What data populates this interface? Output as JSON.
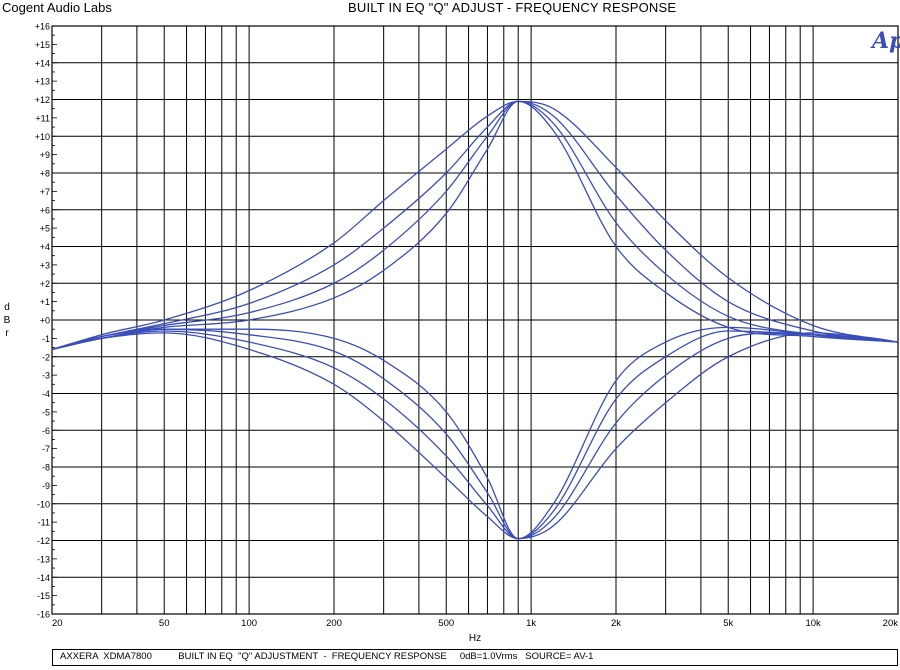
{
  "header": {
    "company": "Cogent Audio Labs",
    "title": "BUILT IN EQ \"Q\" ADJUST  -  FREQUENCY RESPONSE"
  },
  "logo": {
    "text": "Ap",
    "color": "#3a4db8"
  },
  "footer": {
    "text": "AXXERA  XDMA7800          BUILT IN EQ  \"Q\" ADJUSTMENT  -  FREQUENCY RESPONSE     0dB=1.0Vrms   SOURCE= AV-1"
  },
  "chart_data": {
    "type": "line",
    "title": "BUILT IN EQ \"Q\" ADJUST  -  FREQUENCY RESPONSE",
    "xlabel": "Hz",
    "ylabel": "dBr",
    "x_scale": "log",
    "xlim": [
      20,
      20000
    ],
    "ylim": [
      -16,
      16
    ],
    "grid": true,
    "line_color": "#3a4db8",
    "x_tick_labels": [
      "20",
      "50",
      "100",
      "200",
      "500",
      "1k",
      "2k",
      "5k",
      "10k",
      "20k"
    ],
    "y_tick_labels": [
      "+16",
      "+15",
      "+14",
      "+13",
      "+12",
      "+11",
      "+10",
      "+9",
      "+8",
      "+7",
      "+6",
      "+5",
      "+4",
      "+3",
      "+2",
      "+1",
      "+0",
      "-1",
      "-2",
      "-3",
      "-4",
      "-5",
      "-6",
      "-7",
      "-8",
      "-9",
      "-10",
      "-11",
      "-12",
      "-13",
      "-14",
      "-15",
      "-16"
    ],
    "x": [
      20,
      30,
      50,
      100,
      200,
      300,
      500,
      700,
      900,
      1200,
      2000,
      3000,
      5000,
      10000,
      20000
    ],
    "series": [
      {
        "values": [
          -1.6,
          -0.8,
          0.0,
          1.6,
          4.2,
          6.5,
          9.3,
          11.1,
          11.9,
          11.5,
          8.3,
          5.4,
          2.3,
          -0.3,
          -1.2
        ]
      },
      {
        "values": [
          -1.6,
          -0.9,
          -0.2,
          0.9,
          3.0,
          5.0,
          8.0,
          10.5,
          11.9,
          11.1,
          6.8,
          3.8,
          1.0,
          -0.6,
          -1.2
        ]
      },
      {
        "values": [
          -1.6,
          -0.9,
          -0.3,
          0.4,
          2.0,
          3.8,
          7.0,
          10.0,
          11.9,
          10.7,
          5.3,
          2.5,
          0.2,
          -0.8,
          -1.2
        ]
      },
      {
        "values": [
          -1.6,
          -0.9,
          -0.4,
          0.0,
          1.2,
          2.7,
          5.8,
          9.3,
          11.9,
          10.3,
          4.0,
          1.5,
          -0.4,
          -0.9,
          -1.2
        ]
      },
      {
        "values": [
          -1.6,
          -1.0,
          -0.7,
          -1.6,
          -3.5,
          -5.5,
          -8.6,
          -10.7,
          -11.9,
          -11.2,
          -7.0,
          -4.5,
          -2.0,
          -0.7,
          -1.2
        ]
      },
      {
        "values": [
          -1.6,
          -1.0,
          -0.6,
          -1.2,
          -2.6,
          -4.3,
          -7.4,
          -10.1,
          -11.9,
          -10.8,
          -5.6,
          -3.0,
          -1.0,
          -0.8,
          -1.2
        ]
      },
      {
        "values": [
          -1.6,
          -1.0,
          -0.5,
          -0.8,
          -1.7,
          -3.2,
          -6.2,
          -9.4,
          -11.9,
          -10.4,
          -4.3,
          -2.0,
          -0.6,
          -0.8,
          -1.2
        ]
      },
      {
        "values": [
          -1.6,
          -1.0,
          -0.5,
          -0.5,
          -1.0,
          -2.2,
          -5.0,
          -8.6,
          -11.9,
          -10.0,
          -3.3,
          -1.2,
          -0.4,
          -0.8,
          -1.2
        ]
      }
    ]
  }
}
